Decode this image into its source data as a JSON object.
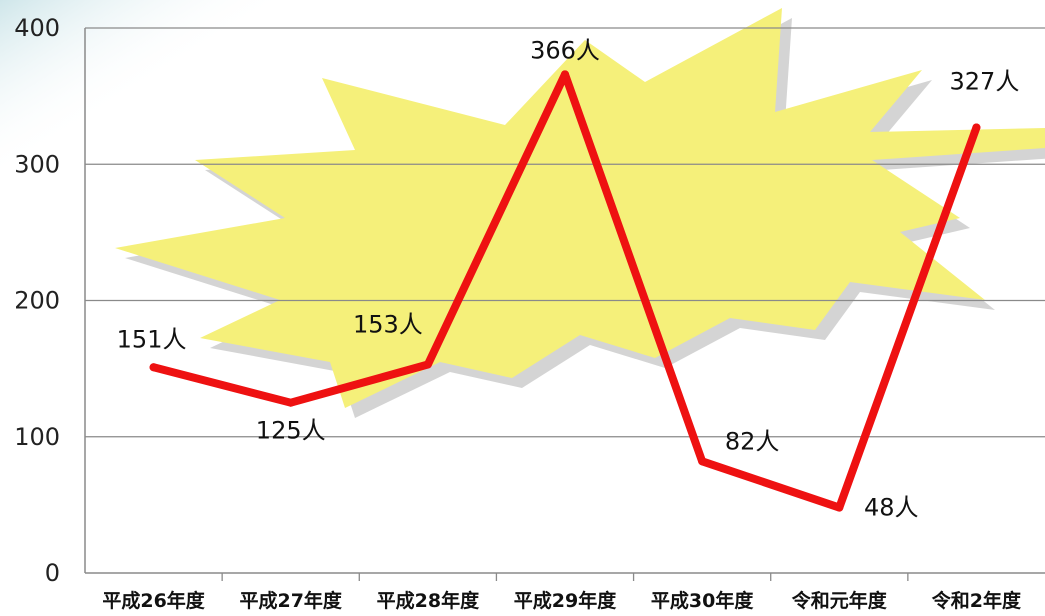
{
  "chart_data": {
    "type": "line",
    "categories": [
      "平成26年度",
      "平成27年度",
      "平成28年度",
      "平成29年度",
      "平成30年度",
      "令和元年度",
      "令和2年度"
    ],
    "values": [
      151,
      125,
      153,
      366,
      82,
      48,
      327
    ],
    "data_labels": [
      "151人",
      "125人",
      "153人",
      "366人",
      "82人",
      "48人",
      "327人"
    ],
    "yticks": [
      "0",
      "100",
      "200",
      "300",
      "400"
    ],
    "ylim": [
      0,
      400
    ],
    "grid": true,
    "line_color": "#ee1111",
    "background_burst_color": "#f5f07a"
  }
}
